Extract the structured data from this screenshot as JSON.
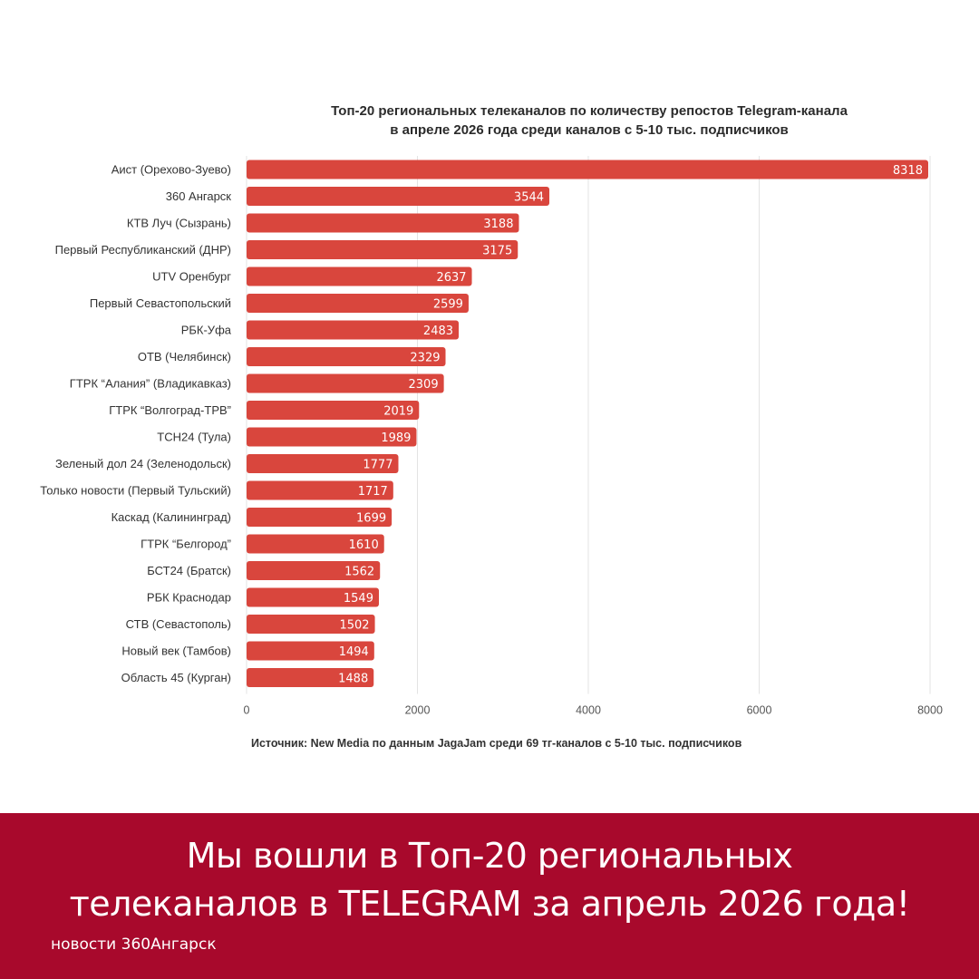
{
  "chart_data": {
    "type": "bar",
    "orientation": "horizontal",
    "title_lines": [
      "Топ-20 региональных телеканалов по количеству репостов Telegram-канала",
      "в апреле 2026 года среди каналов с 5-10 тыс. подписчиков"
    ],
    "categories": [
      "Аист (Орехово-Зуево)",
      "360 Ангарск",
      "КТВ Луч (Сызрань)",
      "Первый Республиканский (ДНР)",
      "UTV Оренбург",
      "Первый Севастопольский",
      "РБК-Уфа",
      "ОТВ (Челябинск)",
      "ГТРК “Алания” (Владикавказ)",
      "ГТРК “Волгоград-ТРВ”",
      "ТСН24 (Тула)",
      "Зеленый дол 24 (Зеленодольск)",
      "Только новости (Первый Тульский)",
      "Каскад (Калининград)",
      "ГТРК “Белгород”",
      "БСТ24 (Братск)",
      "РБК Краснодар",
      "СТВ (Севастополь)",
      "Новый век (Тамбов)",
      "Область 45 (Курган)"
    ],
    "values": [
      8318,
      3544,
      3188,
      3175,
      2637,
      2599,
      2483,
      2329,
      2309,
      2019,
      1989,
      1777,
      1717,
      1699,
      1610,
      1562,
      1549,
      1502,
      1494,
      1488
    ],
    "value_labels": [
      "8318",
      "3544",
      "3188",
      "3175",
      "2637",
      "2599",
      "2483",
      "2329",
      "2309",
      "2019",
      "1989",
      "1777",
      "1717",
      "1699",
      "1610",
      "1562",
      "1549",
      "1502",
      "1494",
      "1488"
    ],
    "xlim": [
      0,
      8000
    ],
    "x_ticks": [
      0,
      2000,
      4000,
      6000,
      8000
    ],
    "x_tick_labels": [
      "0",
      "2000",
      "4000",
      "6000",
      "8000"
    ],
    "grid": true,
    "bar_color": "#d9463d",
    "source_note": "Источник: New Media по данным JagaJam среди 69 тг-каналов с 5-10 тыс. подписчиков"
  },
  "footer": {
    "background": "#a8092c",
    "headline_lines": [
      "Мы вошли в Топ-20 региональных",
      "телеканалов в TELEGRAM за апрель 2026 года!"
    ],
    "brand": "новости 360Ангарск"
  }
}
